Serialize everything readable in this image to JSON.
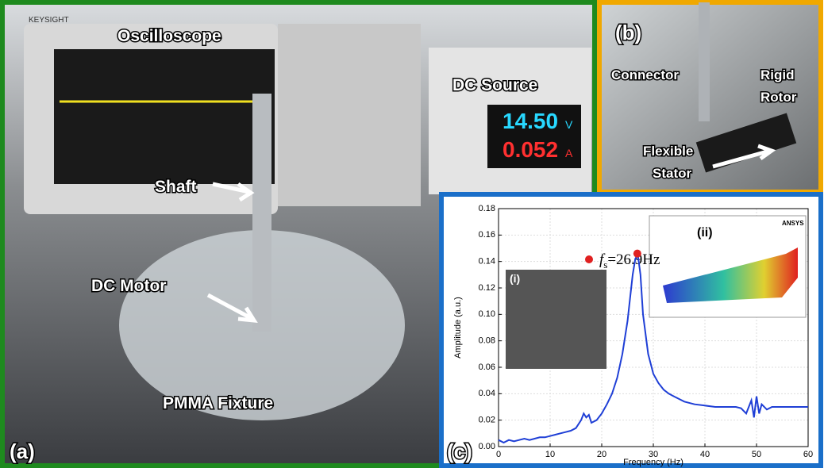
{
  "photos": {
    "panel_a": {
      "label": "(a)",
      "oscilloscope": "Oscilloscope",
      "dc_source": "DC Source",
      "shaft": "Shaft",
      "dc_motor": "DC Motor",
      "fixture": "PMMA Fixture",
      "brand": "KEYSIGHT",
      "voltage": "14.50",
      "voltage_unit": "V",
      "current": "0.052",
      "current_unit": "A"
    },
    "panel_b": {
      "label": "(b)",
      "connector": "Connector",
      "rigid_rotor": [
        "Rigid",
        "Rotor"
      ],
      "flexible_stator": [
        "Flexible",
        "Stator"
      ]
    }
  },
  "chart_data": {
    "type": "line",
    "panel_label": "(c)",
    "x_label": "Frequency (Hz)",
    "y_label": "Amplitude (a.u.)",
    "x": [
      0,
      1,
      2,
      3,
      4,
      5,
      6,
      7,
      8,
      9,
      10,
      11,
      12,
      13,
      14,
      15,
      16,
      16.5,
      17,
      17.5,
      18,
      19,
      20,
      21,
      22,
      23,
      24,
      25,
      26,
      26.5,
      27,
      27.5,
      28,
      29,
      30,
      31,
      32,
      33,
      34,
      35,
      36,
      38,
      40,
      42,
      44,
      46,
      47,
      48,
      49,
      49.5,
      50,
      50.5,
      51,
      52,
      53,
      55,
      57,
      60
    ],
    "series": [
      {
        "color": "#1f3fd6",
        "values": [
          0.005,
          0.003,
          0.005,
          0.004,
          0.005,
          0.006,
          0.005,
          0.006,
          0.007,
          0.007,
          0.008,
          0.009,
          0.01,
          0.011,
          0.012,
          0.014,
          0.02,
          0.025,
          0.022,
          0.024,
          0.018,
          0.02,
          0.025,
          0.032,
          0.04,
          0.052,
          0.07,
          0.095,
          0.13,
          0.142,
          0.145,
          0.13,
          0.1,
          0.07,
          0.055,
          0.048,
          0.043,
          0.04,
          0.038,
          0.036,
          0.034,
          0.032,
          0.031,
          0.03,
          0.03,
          0.03,
          0.029,
          0.025,
          0.035,
          0.022,
          0.038,
          0.025,
          0.032,
          0.028,
          0.03,
          0.03,
          0.03,
          0.03
        ]
      }
    ],
    "peak": {
      "x": 26.9,
      "y": 0.146,
      "color": "#e02020"
    },
    "annotation": [
      "f",
      "s",
      "=26.9Hz"
    ],
    "inset_i": "(i)",
    "inset_ii": "(ii)",
    "inset_ii_brand": "ANSYS",
    "xlim": [
      0,
      60
    ],
    "xticks": [
      0,
      10,
      20,
      30,
      40,
      50,
      60
    ],
    "ylim": [
      0,
      0.18
    ],
    "yticks": [
      {
        "value": 0,
        "label": "0.00"
      },
      {
        "value": 0.02,
        "label": "0.02"
      },
      {
        "value": 0.04,
        "label": "0.04"
      },
      {
        "value": 0.06,
        "label": "0.06"
      },
      {
        "value": 0.08,
        "label": "0.08"
      },
      {
        "value": 0.1,
        "label": "0.10"
      },
      {
        "value": 0.12,
        "label": "0.12"
      },
      {
        "value": 0.14,
        "label": "0.14"
      },
      {
        "value": 0.16,
        "label": "0.16"
      },
      {
        "value": 0.18,
        "label": "0.18"
      }
    ],
    "grid": true
  }
}
